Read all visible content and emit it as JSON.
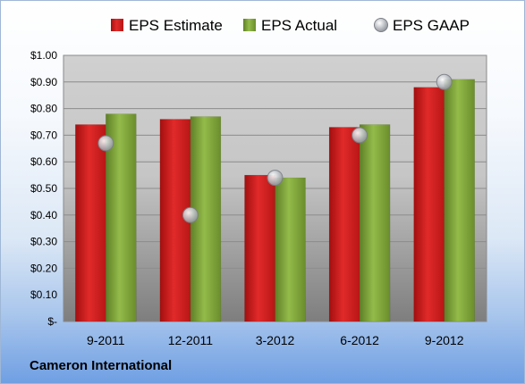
{
  "chart_data": {
    "type": "bar",
    "categories": [
      "9-2011",
      "12-2011",
      "3-2012",
      "6-2012",
      "9-2012"
    ],
    "series": [
      {
        "name": "EPS Estimate",
        "kind": "bar",
        "color": "#cc1f1f",
        "values": [
          0.74,
          0.76,
          0.55,
          0.73,
          0.88
        ]
      },
      {
        "name": "EPS Actual",
        "kind": "bar",
        "color": "#7fa33a",
        "values": [
          0.78,
          0.77,
          0.54,
          0.74,
          0.91
        ]
      },
      {
        "name": "EPS GAAP",
        "kind": "marker",
        "color": "#b8bcc4",
        "values": [
          0.67,
          0.4,
          0.54,
          0.7,
          0.9
        ]
      }
    ],
    "yticks": [
      0,
      0.1,
      0.2,
      0.3,
      0.4,
      0.5,
      0.6,
      0.7,
      0.8,
      0.9,
      1.0
    ],
    "ytick_labels": [
      "$-",
      "$0.10",
      "$0.20",
      "$0.30",
      "$0.40",
      "$0.50",
      "$0.60",
      "$0.70",
      "$0.80",
      "$0.90",
      "$1.00"
    ],
    "ylim": [
      0,
      1.0
    ],
    "grid": true,
    "legend": "top"
  },
  "footer": {
    "company": "Cameron International"
  }
}
